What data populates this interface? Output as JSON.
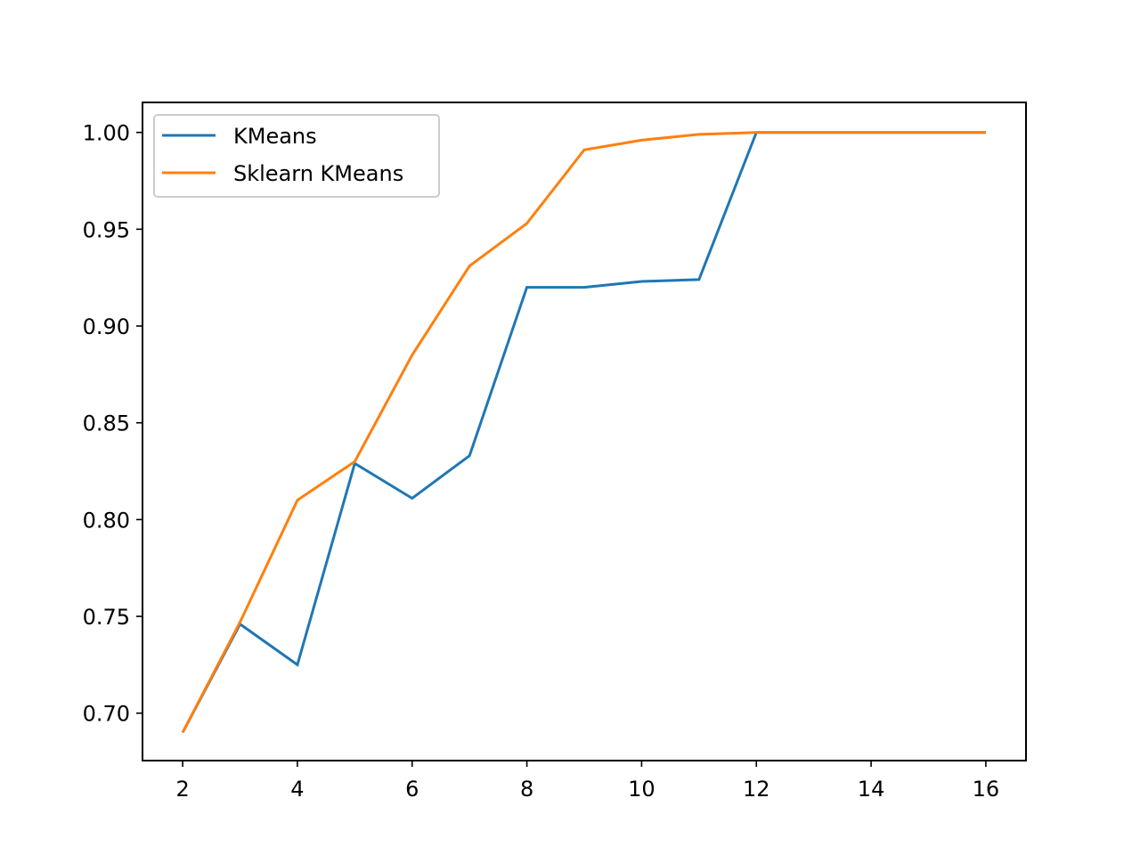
{
  "chart_data": {
    "type": "line",
    "title": "",
    "xlabel": "",
    "ylabel": "",
    "xlim": [
      1.3,
      16.7
    ],
    "ylim": [
      0.6755,
      1.0155
    ],
    "x_ticks": [
      2,
      4,
      6,
      8,
      10,
      12,
      14,
      16
    ],
    "y_ticks": [
      0.7,
      0.75,
      0.8,
      0.85,
      0.9,
      0.95,
      1.0
    ],
    "x_tick_labels": [
      "2",
      "4",
      "6",
      "8",
      "10",
      "12",
      "14",
      "16"
    ],
    "y_tick_labels": [
      "0.70",
      "0.75",
      "0.80",
      "0.85",
      "0.90",
      "0.95",
      "1.00"
    ],
    "grid": false,
    "legend_position": "top-left",
    "x": [
      2,
      3,
      4,
      5,
      6,
      7,
      8,
      9,
      10,
      11,
      12,
      13,
      14,
      15,
      16
    ],
    "series": [
      {
        "name": "KMeans",
        "color": "#1f77b4",
        "values": [
          0.69,
          0.746,
          0.725,
          0.829,
          0.811,
          0.833,
          0.92,
          0.92,
          0.923,
          0.924,
          1.0,
          1.0,
          1.0,
          1.0,
          1.0
        ]
      },
      {
        "name": "Sklearn KMeans",
        "color": "#ff7f0e",
        "values": [
          0.69,
          0.747,
          0.81,
          0.83,
          0.885,
          0.931,
          0.953,
          0.991,
          0.996,
          0.999,
          1.0,
          1.0,
          1.0,
          1.0,
          1.0
        ]
      }
    ]
  }
}
